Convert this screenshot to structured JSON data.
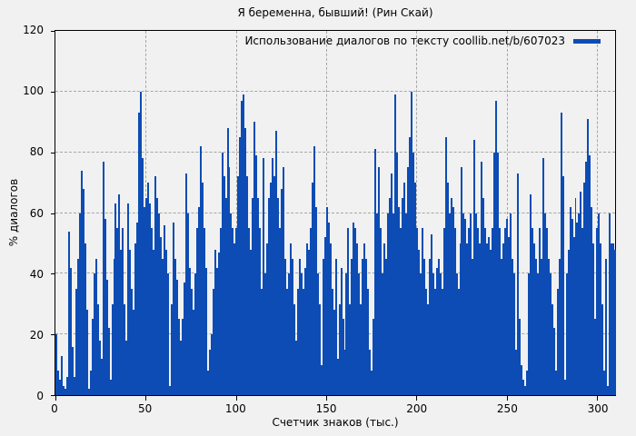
{
  "title": "Я беременна, бывший! (Рин Скай)",
  "colors": {
    "bar": "#0d4cb4",
    "background": "#f1f1f1",
    "grid": "#a6a6a6",
    "axis": "#000000"
  },
  "chart_data": {
    "type": "bar",
    "title": "Я беременна, бывший! (Рин Скай)",
    "legend": "Использование диалогов по тексту coollib.net/b/607023",
    "legend_position": "top-right-inside",
    "xlabel": "Счетчик знаков (тыс.)",
    "ylabel": "% диалогов",
    "xlim": [
      0,
      310
    ],
    "ylim": [
      0,
      120
    ],
    "x_ticks": [
      0,
      50,
      100,
      150,
      200,
      250,
      300
    ],
    "y_ticks": [
      0,
      20,
      40,
      60,
      80,
      100,
      120
    ],
    "grid": true,
    "x_step": 1,
    "x_start": 0,
    "values": [
      20,
      8,
      5,
      13,
      3,
      2,
      6,
      54,
      42,
      16,
      6,
      35,
      45,
      60,
      74,
      68,
      50,
      28,
      2,
      8,
      25,
      40,
      45,
      30,
      18,
      12,
      77,
      58,
      38,
      22,
      5,
      30,
      45,
      63,
      55,
      66,
      48,
      55,
      30,
      18,
      63,
      48,
      35,
      28,
      50,
      57,
      93,
      100,
      78,
      62,
      65,
      70,
      63,
      55,
      48,
      72,
      65,
      60,
      52,
      45,
      56,
      48,
      40,
      3,
      30,
      57,
      45,
      38,
      25,
      18,
      25,
      37,
      73,
      60,
      42,
      35,
      28,
      40,
      55,
      62,
      82,
      70,
      55,
      42,
      8,
      15,
      20,
      35,
      48,
      42,
      47,
      55,
      80,
      72,
      65,
      88,
      75,
      60,
      55,
      50,
      55,
      72,
      85,
      97,
      99,
      88,
      72,
      55,
      48,
      65,
      90,
      79,
      65,
      55,
      35,
      78,
      40,
      50,
      65,
      70,
      78,
      72,
      87,
      65,
      55,
      68,
      75,
      45,
      35,
      40,
      50,
      45,
      30,
      18,
      35,
      45,
      40,
      35,
      42,
      50,
      48,
      55,
      70,
      82,
      62,
      40,
      30,
      10,
      45,
      52,
      62,
      57,
      50,
      35,
      28,
      45,
      12,
      30,
      42,
      25,
      15,
      40,
      55,
      30,
      45,
      57,
      55,
      50,
      40,
      30,
      45,
      50,
      45,
      35,
      15,
      8,
      25,
      81,
      60,
      75,
      55,
      40,
      50,
      45,
      60,
      65,
      73,
      60,
      99,
      80,
      62,
      55,
      65,
      70,
      60,
      75,
      85,
      100,
      80,
      70,
      55,
      48,
      40,
      55,
      45,
      35,
      30,
      45,
      53,
      40,
      35,
      42,
      45,
      40,
      35,
      55,
      85,
      70,
      60,
      65,
      62,
      55,
      40,
      35,
      50,
      75,
      60,
      58,
      50,
      55,
      60,
      45,
      84,
      60,
      55,
      50,
      77,
      65,
      55,
      50,
      52,
      48,
      55,
      80,
      97,
      80,
      55,
      45,
      50,
      55,
      58,
      52,
      60,
      45,
      40,
      15,
      73,
      25,
      10,
      5,
      3,
      8,
      40,
      66,
      55,
      50,
      45,
      40,
      55,
      45,
      78,
      60,
      55,
      45,
      40,
      30,
      22,
      8,
      35,
      45,
      93,
      72,
      5,
      40,
      48,
      62,
      58,
      52,
      65,
      57,
      60,
      67,
      55,
      70,
      77,
      91,
      79,
      62,
      50,
      25,
      55,
      60,
      50,
      30,
      8,
      45,
      3,
      60,
      50,
      50,
      48
    ]
  }
}
